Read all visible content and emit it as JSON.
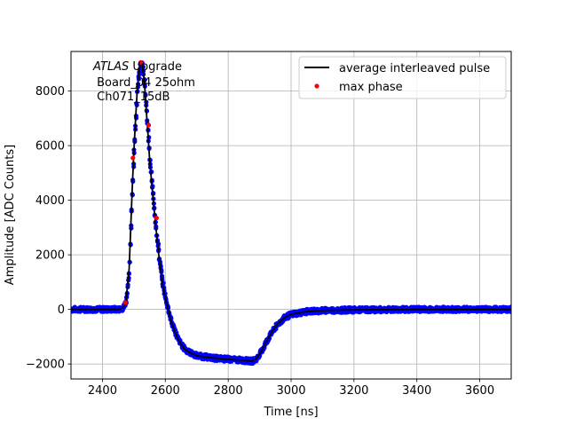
{
  "chart_data": {
    "type": "line",
    "xlabel": "Time [ns]",
    "ylabel": "Amplitude [ADC Counts]",
    "xlim": [
      2300,
      3700
    ],
    "ylim": [
      -2550,
      9450
    ],
    "xticks": [
      2400,
      2600,
      2800,
      3000,
      3200,
      3400,
      3600
    ],
    "yticks": [
      -2000,
      0,
      2000,
      4000,
      6000,
      8000
    ],
    "grid": true,
    "legend_position": "top-right",
    "annotation": {
      "italic": "ATLAS",
      "rest": " Upgrade",
      "line2": " Board_04 25ohm",
      "line3": " Ch071_15dB"
    },
    "series": [
      {
        "name": "",
        "style": "scatter",
        "color": "#0000ff",
        "x": [
          2300,
          2350,
          2400,
          2450,
          2465,
          2475,
          2485,
          2490,
          2495,
          2500,
          2505,
          2510,
          2515,
          2520,
          2525,
          2530,
          2535,
          2540,
          2545,
          2550,
          2560,
          2570,
          2580,
          2590,
          2600,
          2620,
          2640,
          2660,
          2680,
          2700,
          2750,
          2800,
          2850,
          2875,
          2890,
          2905,
          2920,
          2940,
          2960,
          2980,
          3000,
          3050,
          3100,
          3200,
          3300,
          3400,
          3500,
          3600,
          3700
        ],
        "y": [
          0,
          0,
          0,
          0,
          50,
          300,
          1500,
          3000,
          4500,
          5800,
          6900,
          7900,
          8600,
          9000,
          9050,
          8700,
          8100,
          7200,
          6400,
          5500,
          4200,
          3000,
          1900,
          1000,
          400,
          -500,
          -1100,
          -1450,
          -1600,
          -1700,
          -1780,
          -1830,
          -1870,
          -1900,
          -1800,
          -1550,
          -1200,
          -800,
          -500,
          -300,
          -180,
          -80,
          -40,
          -20,
          -10,
          0,
          0,
          0,
          0
        ]
      },
      {
        "name": "average interleaved pulse",
        "style": "line",
        "color": "#000000",
        "x": [
          2300,
          2350,
          2400,
          2450,
          2465,
          2475,
          2485,
          2490,
          2495,
          2500,
          2505,
          2510,
          2515,
          2520,
          2525,
          2530,
          2535,
          2540,
          2545,
          2550,
          2560,
          2570,
          2580,
          2590,
          2600,
          2620,
          2640,
          2660,
          2680,
          2700,
          2750,
          2800,
          2850,
          2875,
          2890,
          2905,
          2920,
          2940,
          2960,
          2980,
          3000,
          3050,
          3100,
          3200,
          3300,
          3400,
          3500,
          3600,
          3700
        ],
        "y": [
          0,
          0,
          0,
          0,
          50,
          300,
          1500,
          3000,
          4500,
          5800,
          6900,
          7900,
          8600,
          9000,
          9050,
          8700,
          8100,
          7200,
          6400,
          5500,
          4200,
          3000,
          1900,
          1000,
          400,
          -500,
          -1100,
          -1450,
          -1600,
          -1700,
          -1780,
          -1830,
          -1870,
          -1900,
          -1800,
          -1550,
          -1200,
          -800,
          -500,
          -300,
          -180,
          -80,
          -40,
          -20,
          -10,
          0,
          0,
          0,
          0
        ]
      },
      {
        "name": "max phase",
        "style": "points",
        "color": "#ff0000",
        "x": [
          2473,
          2497,
          2522,
          2547,
          2572
        ],
        "y": [
          250,
          5550,
          9050,
          6750,
          3350
        ]
      }
    ]
  }
}
